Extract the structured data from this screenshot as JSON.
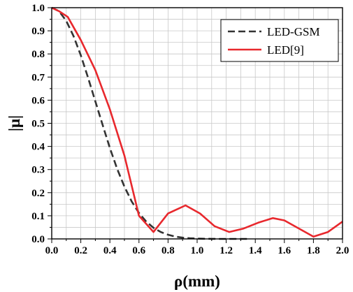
{
  "chart_data": {
    "type": "line",
    "xlabel": "ρ(mm)",
    "ylabel": "|μ|",
    "xlim": [
      0.0,
      2.0
    ],
    "ylim": [
      0.0,
      1.0
    ],
    "xticks": [
      "0.0",
      "0.2",
      "0.4",
      "0.6",
      "0.8",
      "1.0",
      "1.2",
      "1.4",
      "1.6",
      "1.8",
      "2.0"
    ],
    "yticks": [
      "0.0",
      "0.1",
      "0.2",
      "0.3",
      "0.4",
      "0.5",
      "0.6",
      "0.7",
      "0.8",
      "0.9",
      "1.0"
    ],
    "grid": true,
    "legend_position": "top-right",
    "series": [
      {
        "name": "LED-GSM",
        "color": "#333333",
        "style": "dashed",
        "x": [
          0.0,
          0.05,
          0.1,
          0.15,
          0.2,
          0.25,
          0.3,
          0.35,
          0.4,
          0.45,
          0.5,
          0.55,
          0.6,
          0.65,
          0.7,
          0.75,
          0.8,
          0.85,
          0.9,
          0.95,
          1.0,
          1.05,
          1.1,
          1.15,
          1.2,
          1.25,
          1.3,
          1.35
        ],
        "y": [
          1.0,
          0.985,
          0.943,
          0.877,
          0.794,
          0.697,
          0.595,
          0.493,
          0.393,
          0.303,
          0.226,
          0.162,
          0.112,
          0.075,
          0.048,
          0.03,
          0.018,
          0.01,
          0.0055,
          0.0029,
          0.0015,
          0.0007,
          0.0003,
          0.0001,
          0.0,
          0.0,
          0.0,
          0.0
        ]
      },
      {
        "name": "LED[9]",
        "color": "#e8282d",
        "style": "solid",
        "x": [
          0.0,
          0.05,
          0.11,
          0.2,
          0.3,
          0.4,
          0.5,
          0.6,
          0.7,
          0.8,
          0.92,
          1.02,
          1.12,
          1.22,
          1.32,
          1.42,
          1.52,
          1.6,
          1.7,
          1.8,
          1.9,
          2.0
        ],
        "y": [
          1.0,
          0.985,
          0.96,
          0.86,
          0.73,
          0.56,
          0.36,
          0.1,
          0.03,
          0.11,
          0.145,
          0.11,
          0.055,
          0.03,
          0.045,
          0.07,
          0.09,
          0.08,
          0.045,
          0.01,
          0.03,
          0.075
        ]
      }
    ]
  }
}
